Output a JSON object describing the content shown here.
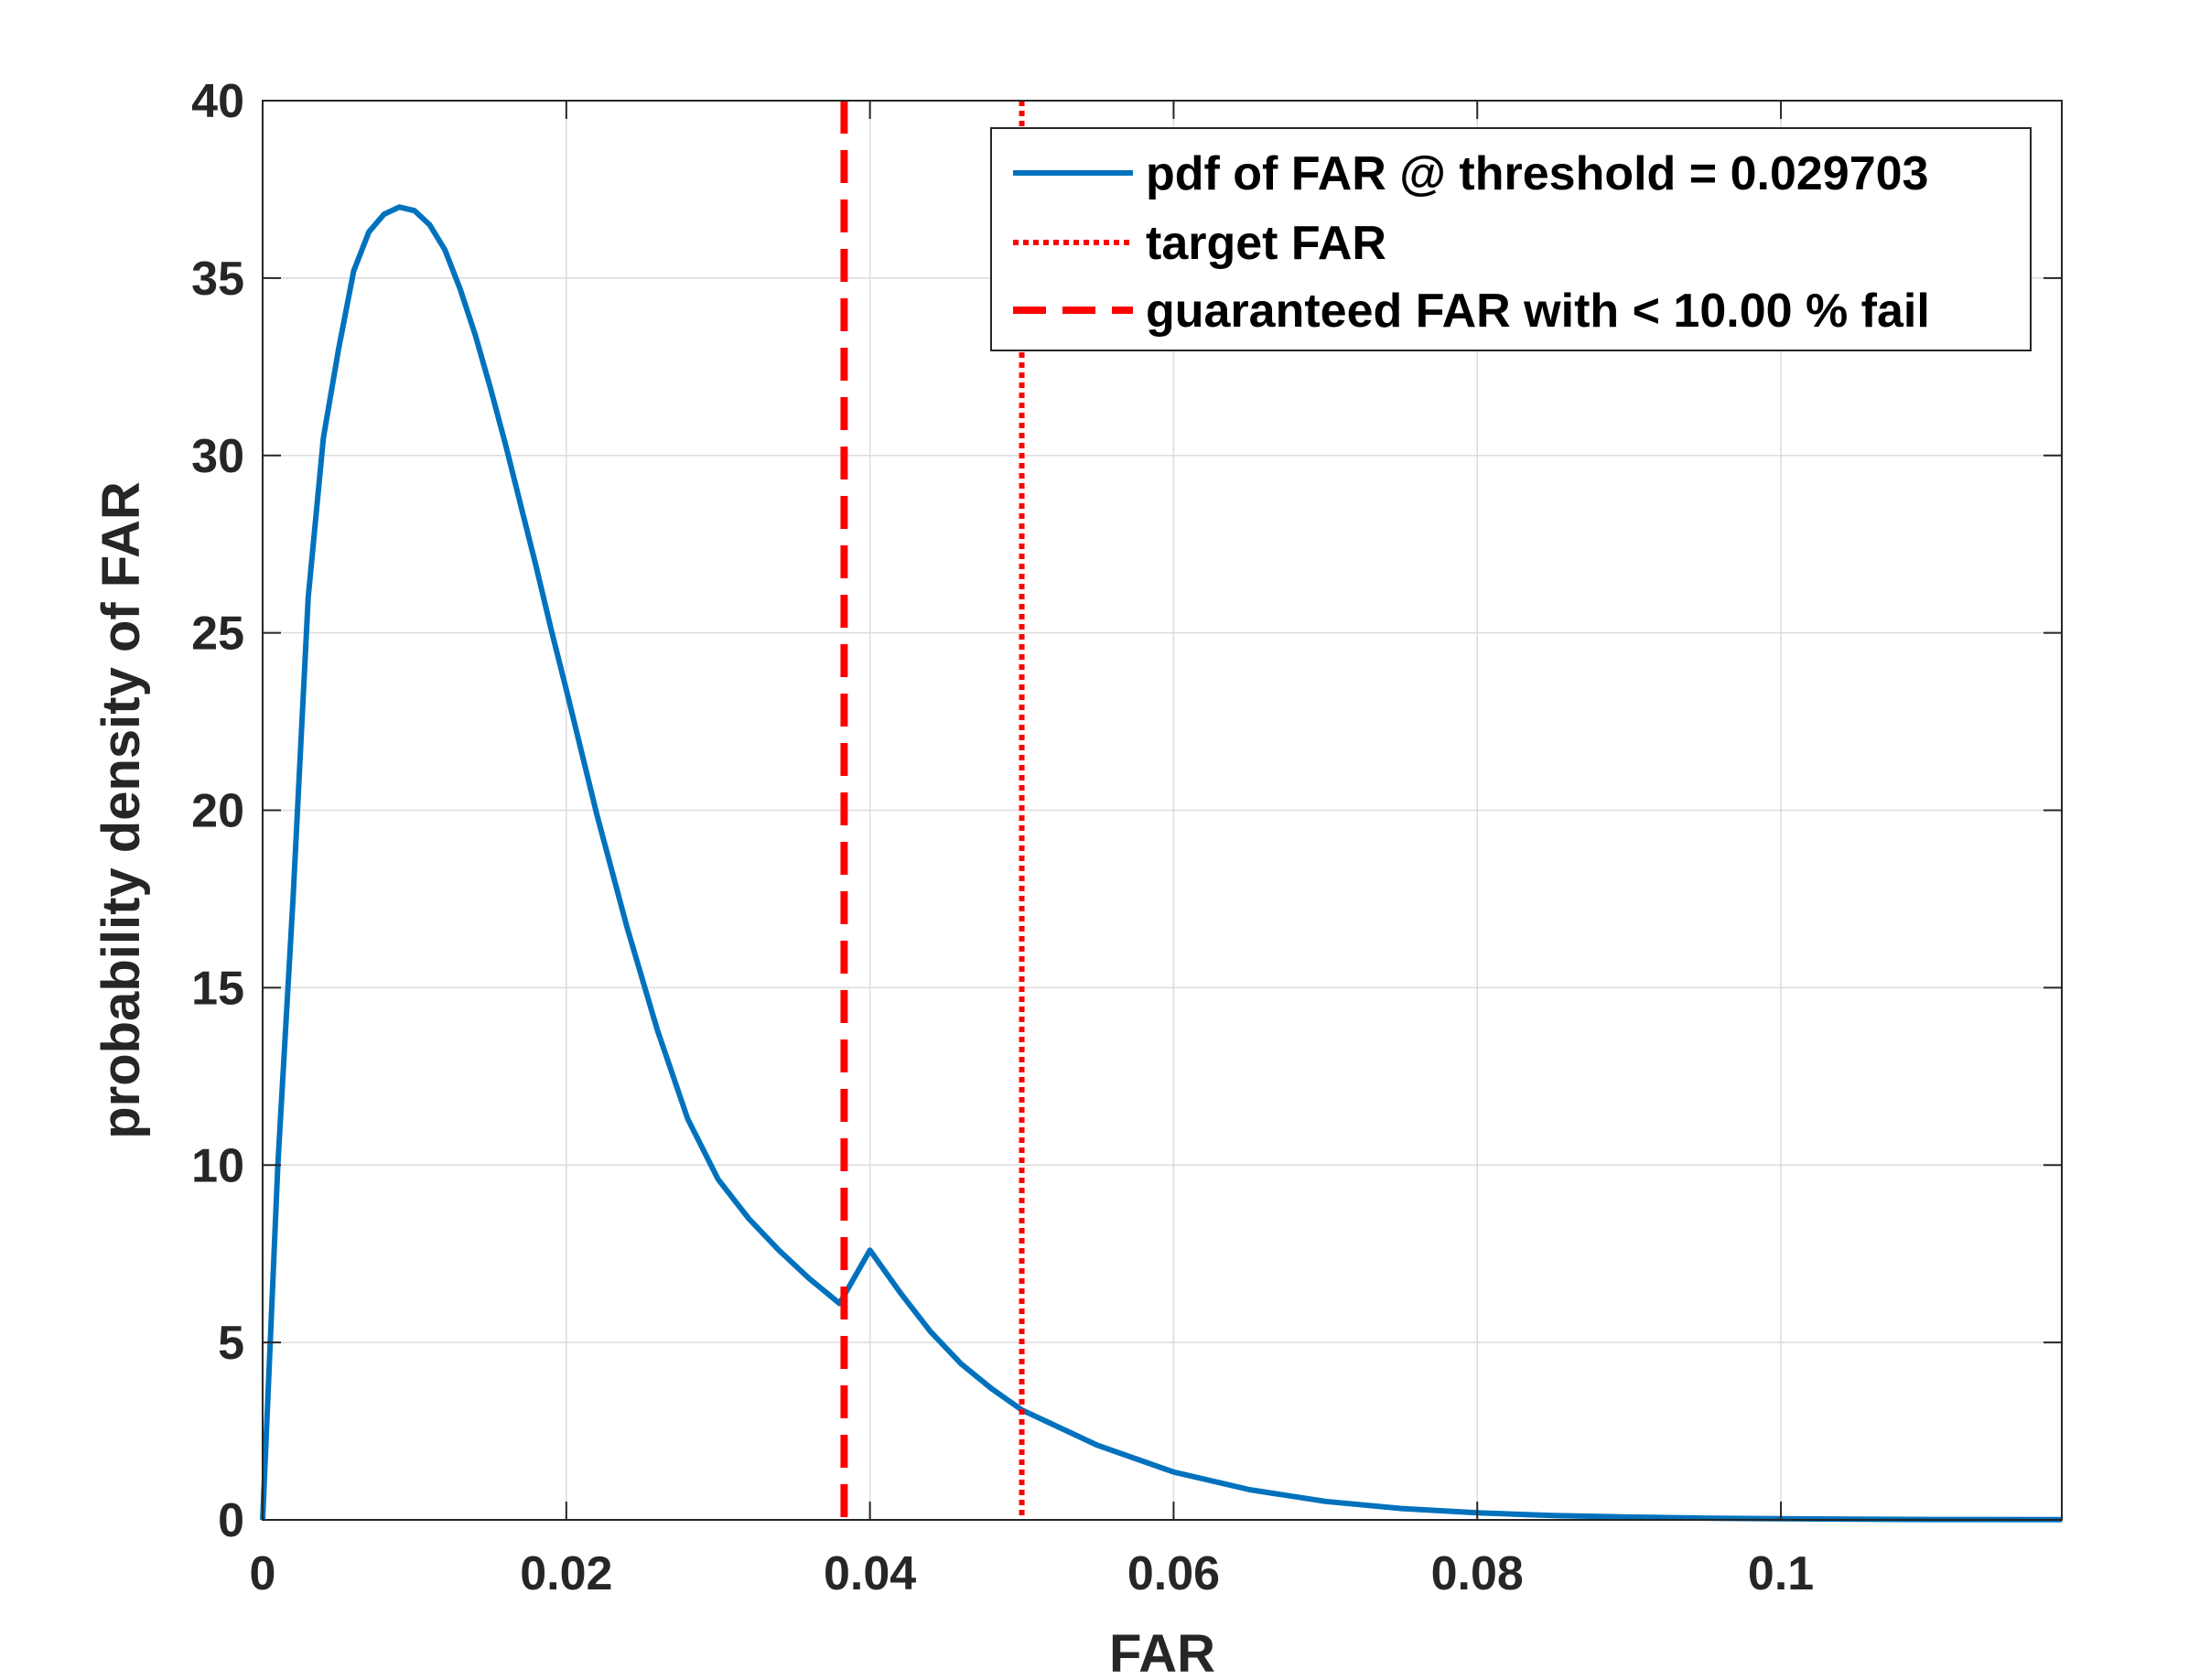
{
  "chart_data": {
    "type": "line",
    "xlabel": "FAR",
    "ylabel": "probability density of FAR",
    "xlim": [
      0,
      0.1185
    ],
    "ylim": [
      0,
      40
    ],
    "x_ticks": [
      0,
      0.02,
      0.04,
      0.06,
      0.08,
      0.1
    ],
    "x_tick_labels": [
      "0",
      "0.02",
      "0.04",
      "0.06",
      "0.08",
      "0.1"
    ],
    "y_ticks": [
      0,
      5,
      10,
      15,
      20,
      25,
      30,
      35,
      40
    ],
    "y_tick_labels": [
      "0",
      "5",
      "10",
      "15",
      "20",
      "25",
      "30",
      "35",
      "40"
    ],
    "grid": true,
    "legend_position": "top-right",
    "series": [
      {
        "name": "pdf of FAR @ threshold = 0.029703",
        "style": "solid",
        "color": "#0072BD",
        "x": [
          0,
          0.001,
          0.002,
          0.003,
          0.004,
          0.005,
          0.006,
          0.007,
          0.008,
          0.009,
          0.01,
          0.011,
          0.012,
          0.013,
          0.014,
          0.015,
          0.016,
          0.017,
          0.018,
          0.019,
          0.02,
          0.022,
          0.024,
          0.026,
          0.028,
          0.03,
          0.032,
          0.034,
          0.036,
          0.038,
          0.04,
          0.042,
          0.044,
          0.046,
          0.048,
          0.05,
          0.055,
          0.06,
          0.065,
          0.07,
          0.075,
          0.08,
          0.085,
          0.09,
          0.095,
          0.1,
          0.105,
          0.11,
          0.1185
        ],
        "y": [
          0,
          10.0,
          17.5,
          26.0,
          30.5,
          33.0,
          35.2,
          36.3,
          36.8,
          37.0,
          36.9,
          36.5,
          35.8,
          34.7,
          33.4,
          31.9,
          30.3,
          28.6,
          26.9,
          25.1,
          23.4,
          19.9,
          16.7,
          13.8,
          11.3,
          9.6,
          8.5,
          7.6,
          6.8,
          6.1,
          7.6,
          6.4,
          5.3,
          4.4,
          3.7,
          3.1,
          2.1,
          1.35,
          0.85,
          0.52,
          0.32,
          0.2,
          0.12,
          0.08,
          0.05,
          0.03,
          0.02,
          0.01,
          0.005
        ]
      },
      {
        "name": "target FAR",
        "style": "dotted",
        "color": "#FF0000",
        "x_value": 0.05
      },
      {
        "name": "guaranteed FAR with < 10.00 % fail",
        "style": "dashed",
        "color": "#FF0000",
        "x_value": 0.0383
      }
    ]
  }
}
